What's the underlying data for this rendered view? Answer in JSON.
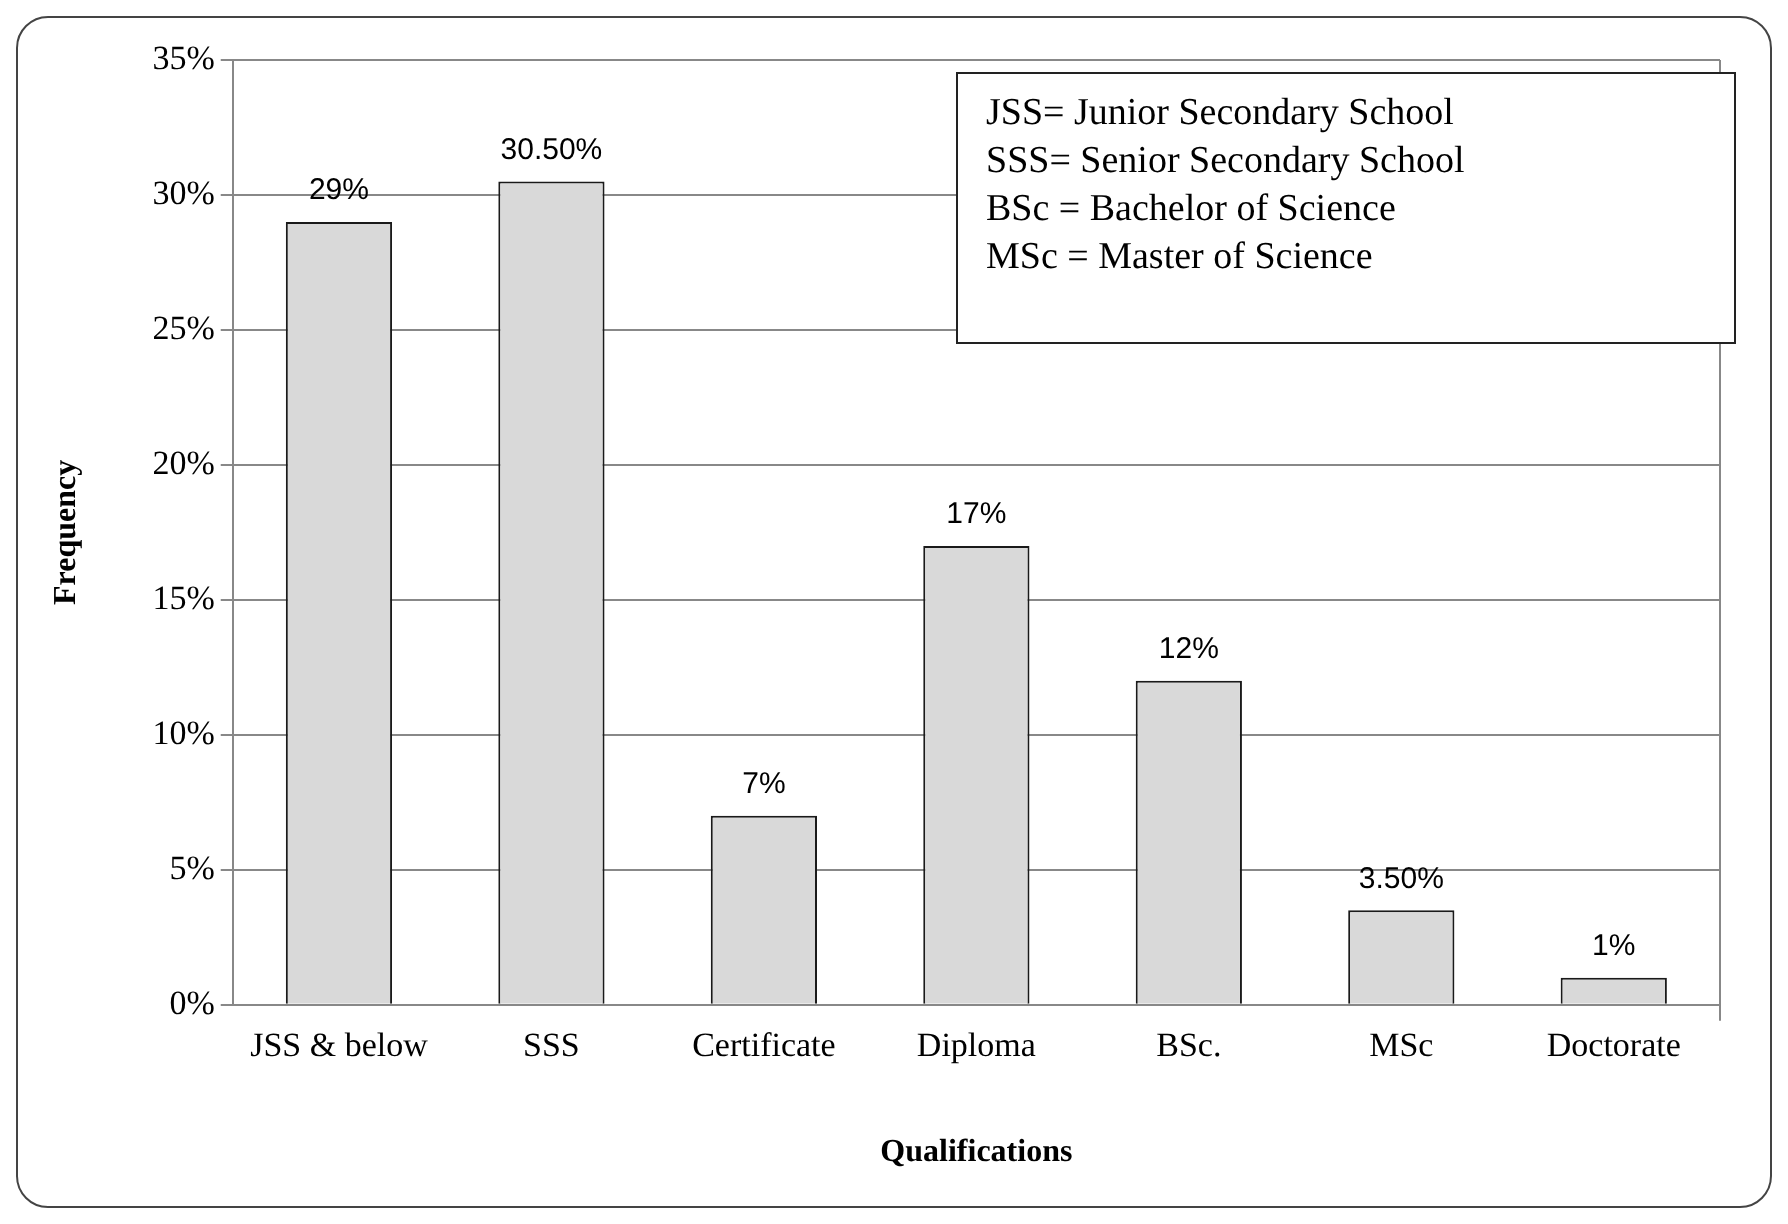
{
  "chart_data": {
    "type": "bar",
    "xlabel": "Qualifications",
    "ylabel": "Frequency",
    "categories": [
      "JSS & below",
      "SSS",
      "Certificate",
      "Diploma",
      "BSc.",
      "MSc",
      "Doctorate"
    ],
    "values": [
      29,
      30.5,
      7,
      17,
      12,
      3.5,
      1
    ],
    "value_labels": [
      "29%",
      "30.50%",
      "7%",
      "17%",
      "12%",
      "3.50%",
      "1%"
    ],
    "color": "#d9d9d9",
    "ylim": [
      0,
      35
    ],
    "yticks": [
      {
        "value": 0,
        "label": "0%"
      },
      {
        "value": 5,
        "label": "5%"
      },
      {
        "value": 10,
        "label": "10%"
      },
      {
        "value": 15,
        "label": "15%"
      },
      {
        "value": 20,
        "label": "20%"
      },
      {
        "value": 25,
        "label": "25%"
      },
      {
        "value": 30,
        "label": "30%"
      },
      {
        "value": 35,
        "label": "35%"
      }
    ],
    "grid": "y",
    "annotations": [
      "JSS= Junior Secondary School",
      "SSS= Senior Secondary School",
      "BSc = Bachelor of Science",
      "MSc = Master of Science"
    ]
  }
}
